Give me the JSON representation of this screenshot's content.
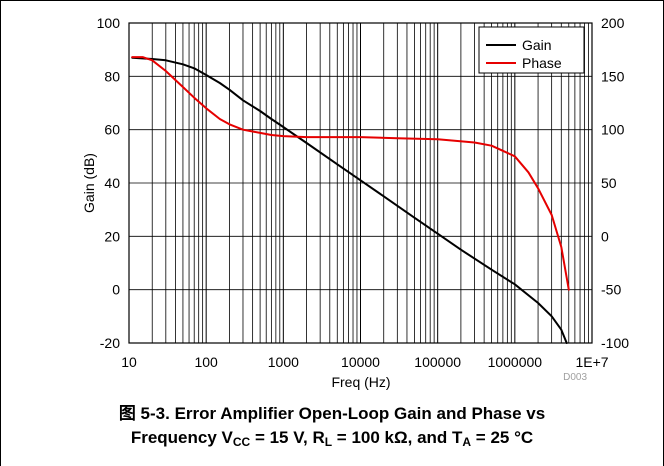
{
  "chart_data": {
    "type": "line",
    "xlabel": "Freq (Hz)",
    "ylabel": "Gain (dB)",
    "x_scale": "log",
    "xlim": [
      10,
      10000000
    ],
    "ylim": [
      -20,
      100
    ],
    "y2lim": [
      -100,
      200
    ],
    "x_tick_labels": [
      "10",
      "100",
      "1000",
      "10000",
      "100000",
      "1000000",
      "1E+7"
    ],
    "y_tick_labels": [
      "-20",
      "0",
      "20",
      "40",
      "60",
      "80",
      "100"
    ],
    "y2_tick_labels": [
      "-100",
      "-50",
      "0",
      "50",
      "100",
      "150",
      "200"
    ],
    "grid": true,
    "legend_position": "top-right",
    "figure_code": "D003",
    "series": [
      {
        "name": "Gain",
        "axis": "left",
        "color": "#000000",
        "x": [
          11,
          20,
          30,
          50,
          70,
          100,
          150,
          200,
          300,
          500,
          700,
          1000,
          2000,
          5000,
          10000,
          20000,
          50000,
          100000,
          200000,
          500000,
          1000000,
          2000000,
          3000000,
          4000000,
          4700000
        ],
        "y": [
          87,
          86.5,
          86,
          84.5,
          83,
          80.5,
          77.5,
          75,
          71,
          67,
          64,
          61,
          55,
          47,
          41,
          35,
          27,
          21,
          15,
          7.5,
          2,
          -5,
          -10,
          -15,
          -20
        ]
      },
      {
        "name": "Phase",
        "axis": "right",
        "color": "#e60000",
        "x": [
          11,
          15,
          20,
          30,
          50,
          70,
          100,
          150,
          200,
          300,
          500,
          700,
          1000,
          2000,
          5000,
          10000,
          30000,
          100000,
          300000,
          500000,
          1000000,
          1500000,
          2000000,
          3000000,
          4000000,
          5000000
        ],
        "y": [
          168,
          168,
          165,
          155,
          140,
          130,
          120,
          110,
          105,
          100,
          97,
          95,
          94,
          93,
          93,
          93,
          92,
          91,
          88,
          85,
          75,
          60,
          45,
          20,
          -10,
          -50
        ]
      }
    ]
  },
  "caption": {
    "prefix": "图 5-3. ",
    "line1": "Error Amplifier Open-Loop Gain and Phase vs",
    "line2_freq": "Frequency V",
    "vcc_sub": "CC",
    "vcc_val": " = 15 V, R",
    "rl_sub": "L",
    "rl_val": " = 100 kΩ, and T",
    "ta_sub": "A",
    "ta_val": " = 25 °C"
  }
}
